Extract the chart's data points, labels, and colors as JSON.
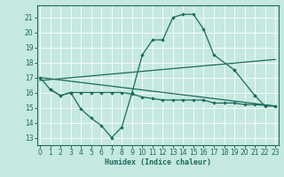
{
  "xlabel": "Humidex (Indice chaleur)",
  "x": [
    0,
    1,
    2,
    3,
    4,
    5,
    6,
    7,
    8,
    9,
    10,
    11,
    12,
    13,
    14,
    15,
    16,
    17,
    18,
    19,
    20,
    21,
    22,
    23
  ],
  "line1_y": [
    17.0,
    16.2,
    15.8,
    16.0,
    14.9,
    14.3,
    13.8,
    13.0,
    13.7,
    16.0,
    18.5,
    19.5,
    19.5,
    21.0,
    21.2,
    21.2,
    20.2,
    18.5,
    17.5,
    17.5,
    15.8,
    15.8,
    15.1,
    15.1
  ],
  "line1_x": [
    0,
    1,
    2,
    3,
    4,
    5,
    6,
    7,
    8,
    9,
    10,
    11,
    12,
    13,
    14,
    15,
    16,
    17,
    19,
    19,
    21,
    21,
    22,
    23
  ],
  "line2_y": [
    16.2,
    15.8,
    16.0,
    16.0,
    16.0,
    16.0,
    16.0,
    16.0,
    15.9,
    15.7,
    15.6,
    15.5,
    15.5,
    15.5,
    15.5,
    15.5,
    15.3,
    15.3,
    15.3,
    15.2,
    15.2,
    15.1
  ],
  "line2_x": [
    1,
    2,
    3,
    4,
    5,
    6,
    7,
    8,
    9,
    10,
    11,
    12,
    13,
    14,
    15,
    16,
    17,
    18,
    19,
    20,
    21,
    23
  ],
  "trend1_x": [
    0,
    23
  ],
  "trend1_y": [
    16.8,
    18.2
  ],
  "trend2_x": [
    0,
    23
  ],
  "trend2_y": [
    17.0,
    15.1
  ],
  "bg_color": "#c5e8e0",
  "line_color": "#1a6b5c",
  "grid_color": "#ffffff",
  "ylim": [
    12.5,
    21.8
  ],
  "xlim": [
    -0.3,
    23.3
  ],
  "yticks": [
    13,
    14,
    15,
    16,
    17,
    18,
    19,
    20,
    21
  ],
  "xticks": [
    0,
    1,
    2,
    3,
    4,
    5,
    6,
    7,
    8,
    9,
    10,
    11,
    12,
    13,
    14,
    15,
    16,
    17,
    18,
    19,
    20,
    21,
    22,
    23
  ]
}
